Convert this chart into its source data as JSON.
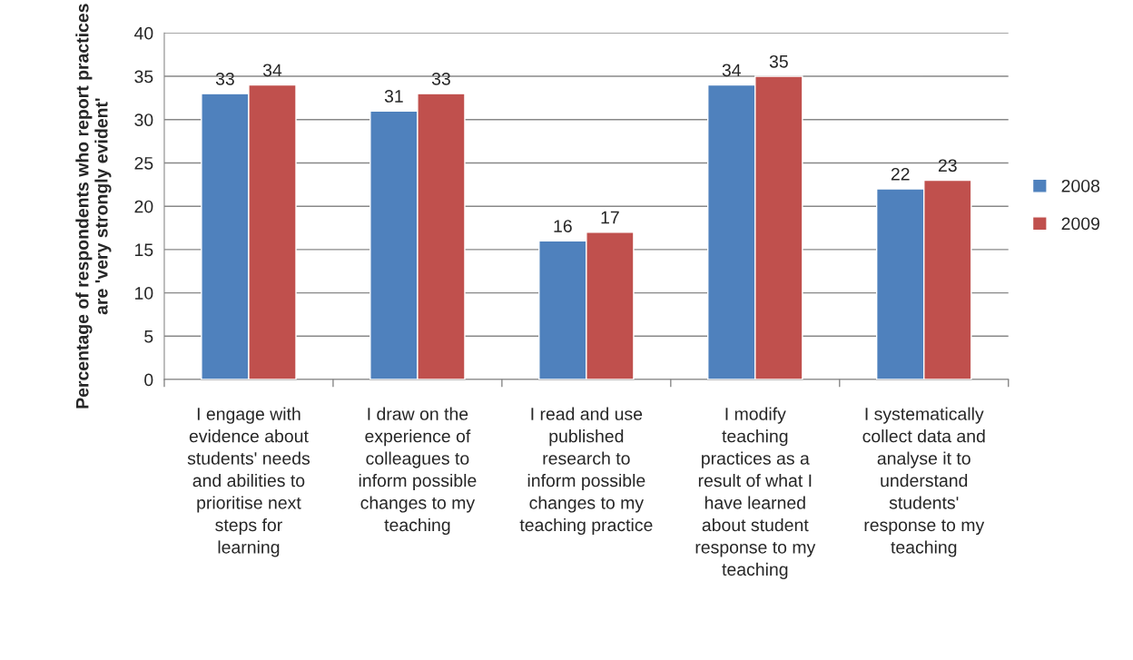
{
  "chart_data": {
    "type": "bar",
    "ylabel": "Percentage of respondents who report practices\nare 'very strongly evident'",
    "categories": [
      "I engage with\nevidence about\nstudents' needs\nand abilities to\nprioritise next\nsteps for\nlearning",
      "I draw on the\nexperience of\ncolleagues to\ninform possible\nchanges to my\nteaching",
      "I read and use\npublished\nresearch to\ninform possible\nchanges to my\nteaching practice",
      "I modify\nteaching\npractices as a\nresult of what I\nhave learned\nabout student\nresponse to my\nteaching",
      "I systematically\ncollect data and\nanalyse it to\nunderstand\nstudents'\nresponse to my\nteaching"
    ],
    "series": [
      {
        "name": "2008",
        "color": "#4f81bd",
        "values": [
          33,
          31,
          16,
          34,
          22
        ]
      },
      {
        "name": "2009",
        "color": "#c0504d",
        "values": [
          34,
          33,
          17,
          35,
          23
        ]
      }
    ],
    "ylim": [
      0,
      40
    ],
    "yticks": [
      0,
      5,
      10,
      15,
      20,
      25,
      30,
      35,
      40
    ],
    "grid": "y",
    "legend": "right",
    "data_labels": true
  }
}
